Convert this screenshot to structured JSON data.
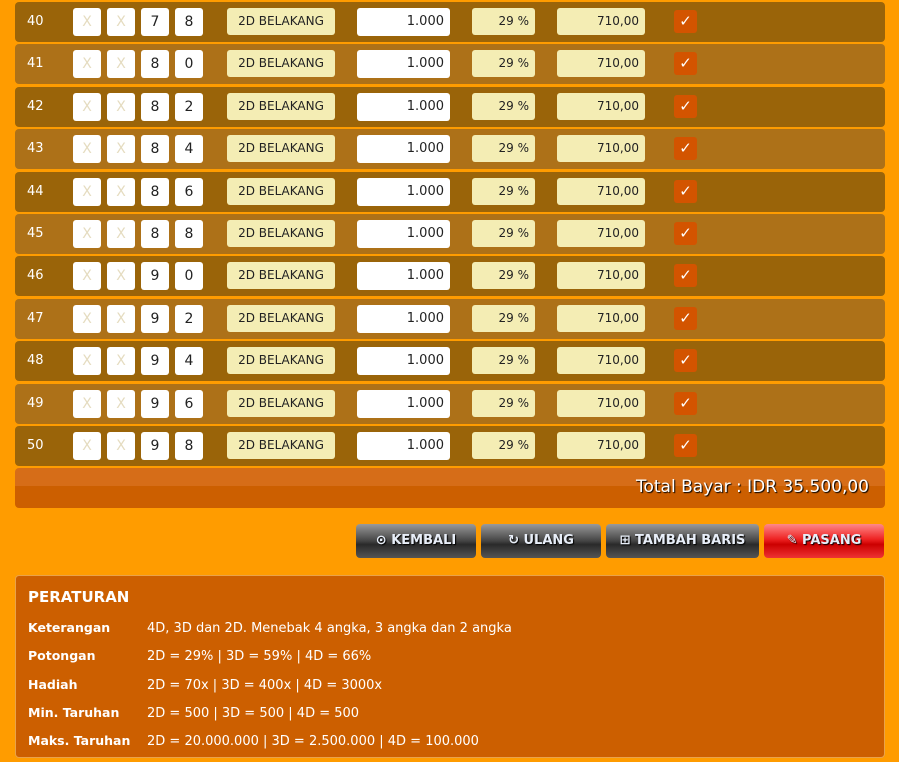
{
  "rows": [
    {
      "no": "40",
      "d1": "X",
      "d2": "X",
      "d3": "7",
      "d4": "8",
      "type": "2D BELAKANG",
      "amount": "1.000",
      "discount": "29 %",
      "pay": "710,00"
    },
    {
      "no": "41",
      "d1": "X",
      "d2": "X",
      "d3": "8",
      "d4": "0",
      "type": "2D BELAKANG",
      "amount": "1.000",
      "discount": "29 %",
      "pay": "710,00"
    },
    {
      "no": "42",
      "d1": "X",
      "d2": "X",
      "d3": "8",
      "d4": "2",
      "type": "2D BELAKANG",
      "amount": "1.000",
      "discount": "29 %",
      "pay": "710,00"
    },
    {
      "no": "43",
      "d1": "X",
      "d2": "X",
      "d3": "8",
      "d4": "4",
      "type": "2D BELAKANG",
      "amount": "1.000",
      "discount": "29 %",
      "pay": "710,00"
    },
    {
      "no": "44",
      "d1": "X",
      "d2": "X",
      "d3": "8",
      "d4": "6",
      "type": "2D BELAKANG",
      "amount": "1.000",
      "discount": "29 %",
      "pay": "710,00"
    },
    {
      "no": "45",
      "d1": "X",
      "d2": "X",
      "d3": "8",
      "d4": "8",
      "type": "2D BELAKANG",
      "amount": "1.000",
      "discount": "29 %",
      "pay": "710,00"
    },
    {
      "no": "46",
      "d1": "X",
      "d2": "X",
      "d3": "9",
      "d4": "0",
      "type": "2D BELAKANG",
      "amount": "1.000",
      "discount": "29 %",
      "pay": "710,00"
    },
    {
      "no": "47",
      "d1": "X",
      "d2": "X",
      "d3": "9",
      "d4": "2",
      "type": "2D BELAKANG",
      "amount": "1.000",
      "discount": "29 %",
      "pay": "710,00"
    },
    {
      "no": "48",
      "d1": "X",
      "d2": "X",
      "d3": "9",
      "d4": "4",
      "type": "2D BELAKANG",
      "amount": "1.000",
      "discount": "29 %",
      "pay": "710,00"
    },
    {
      "no": "49",
      "d1": "X",
      "d2": "X",
      "d3": "9",
      "d4": "6",
      "type": "2D BELAKANG",
      "amount": "1.000",
      "discount": "29 %",
      "pay": "710,00"
    },
    {
      "no": "50",
      "d1": "X",
      "d2": "X",
      "d3": "9",
      "d4": "8",
      "type": "2D BELAKANG",
      "amount": "1.000",
      "discount": "29 %",
      "pay": "710,00"
    }
  ],
  "total": "Total Bayar : IDR  35.500,00",
  "buttons": {
    "back": "KEMBALI",
    "reset": "ULANG",
    "add_row": "TAMBAH BARIS",
    "submit": "PASANG"
  },
  "rules": {
    "title": "PERATURAN",
    "items": [
      {
        "label": "Keterangan",
        "value": "4D, 3D dan 2D. Menebak 4 angka, 3 angka dan 2 angka"
      },
      {
        "label": "Potongan",
        "value": "2D = 29% | 3D = 59% | 4D = 66%"
      },
      {
        "label": "Hadiah",
        "value": "2D = 70x | 3D = 400x | 4D = 3000x"
      },
      {
        "label": "Min. Taruhan",
        "value": "2D = 500 | 3D = 500 | 4D = 500"
      },
      {
        "label": "Maks. Taruhan",
        "value": "2D = 20.000.000 | 3D = 2.500.000 | 4D = 100.000"
      }
    ]
  },
  "colors": {
    "background": "#ff9c00",
    "row_dark": "#9a6409",
    "row_light": "#ad7118",
    "checkbox": "#d35400",
    "panel": "#cc5f00"
  }
}
